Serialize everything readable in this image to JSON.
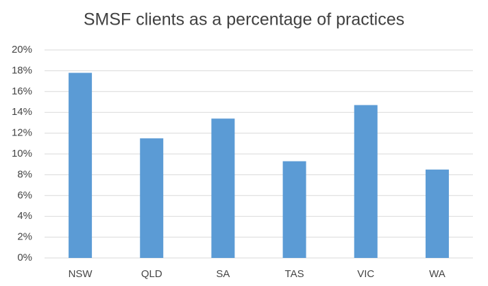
{
  "chart_data": {
    "type": "bar",
    "title": "SMSF clients as a percentage of practices",
    "categories": [
      "NSW",
      "QLD",
      "SA",
      "TAS",
      "VIC",
      "WA"
    ],
    "values": [
      17.8,
      11.5,
      13.4,
      9.3,
      14.7,
      8.5
    ],
    "color": "#5b9bd5",
    "ylim": [
      0,
      20
    ],
    "yticks": [
      {
        "value": 0,
        "label": "0%"
      },
      {
        "value": 2,
        "label": "2%"
      },
      {
        "value": 4,
        "label": "4%"
      },
      {
        "value": 6,
        "label": "6%"
      },
      {
        "value": 8,
        "label": "8%"
      },
      {
        "value": 10,
        "label": "10%"
      },
      {
        "value": 12,
        "label": "12%"
      },
      {
        "value": 14,
        "label": "14%"
      },
      {
        "value": 16,
        "label": "16%"
      },
      {
        "value": 18,
        "label": "18%"
      },
      {
        "value": 20,
        "label": "20%"
      }
    ],
    "grid": true
  }
}
